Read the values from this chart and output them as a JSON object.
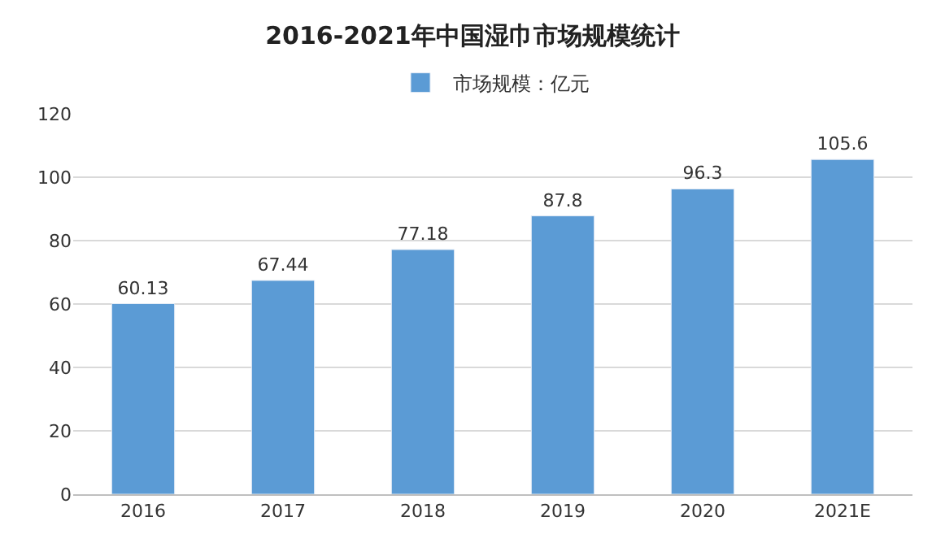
{
  "chart_data": {
    "type": "bar",
    "title": "2016-2021年中国湿巾市场规模统计",
    "categories": [
      "2016",
      "2017",
      "2018",
      "2019",
      "2020",
      "2021E"
    ],
    "series": [
      {
        "name": "市场规模：亿元",
        "color": "#5b9bd5",
        "values": [
          60.13,
          67.44,
          77.18,
          87.8,
          96.3,
          105.6
        ]
      }
    ],
    "ylim": [
      0,
      120
    ],
    "yticks": [
      0,
      20,
      40,
      60,
      80,
      100,
      120
    ],
    "grid": "y",
    "legend": "top",
    "data_labels": true
  }
}
